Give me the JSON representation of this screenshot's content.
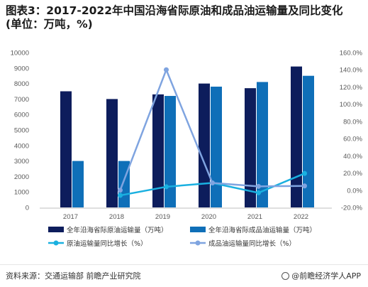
{
  "header": {
    "title_line1": "图表3：2017-2022年中国沿海省际原油和成品油运输量及同比变化",
    "title_line2": "(单位：万吨，%)"
  },
  "footer": {
    "source": "资料来源：交通运输部 前瞻产业研究院",
    "brand": "@前瞻经济学人APP"
  },
  "chart_data": {
    "type": "bar",
    "categories": [
      "2017",
      "2018",
      "2019",
      "2020",
      "2021",
      "2022"
    ],
    "series": [
      {
        "name": "全年沿海省际原油运输量（万吨）",
        "type": "bar",
        "axis": "left",
        "color": "#0d1d5c",
        "values": [
          7500,
          7000,
          7300,
          8000,
          7700,
          9100
        ]
      },
      {
        "name": "全年沿海省际成品油运输量（万吨）",
        "type": "bar",
        "axis": "left",
        "color": "#0f6fb8",
        "values": [
          3000,
          3000,
          7200,
          7800,
          8100,
          8500
        ]
      },
      {
        "name": "原油运输量同比增长（%）",
        "type": "line",
        "axis": "right",
        "color": "#1ab0e0",
        "values": [
          null,
          -6.0,
          4.0,
          8.5,
          -3.0,
          19.5
        ]
      },
      {
        "name": "成品油运输量同比增长（%）",
        "type": "line",
        "axis": "right",
        "color": "#7fa4e0",
        "values": [
          null,
          0.0,
          140.0,
          8.5,
          4.5,
          5.0
        ]
      }
    ],
    "y_left": {
      "min": 0,
      "max": 10000,
      "step": 1000,
      "ticks": [
        "0",
        "1000",
        "2000",
        "3000",
        "4000",
        "5000",
        "6000",
        "7000",
        "8000",
        "9000",
        "10000"
      ]
    },
    "y_right": {
      "min": -20,
      "max": 160,
      "step": 20,
      "ticks": [
        "-20.0%",
        "0.0%",
        "20.0%",
        "40.0%",
        "60.0%",
        "80.0%",
        "100.0%",
        "120.0%",
        "140.0%",
        "160.0%"
      ]
    },
    "grid": false,
    "legend_position": "bottom"
  }
}
